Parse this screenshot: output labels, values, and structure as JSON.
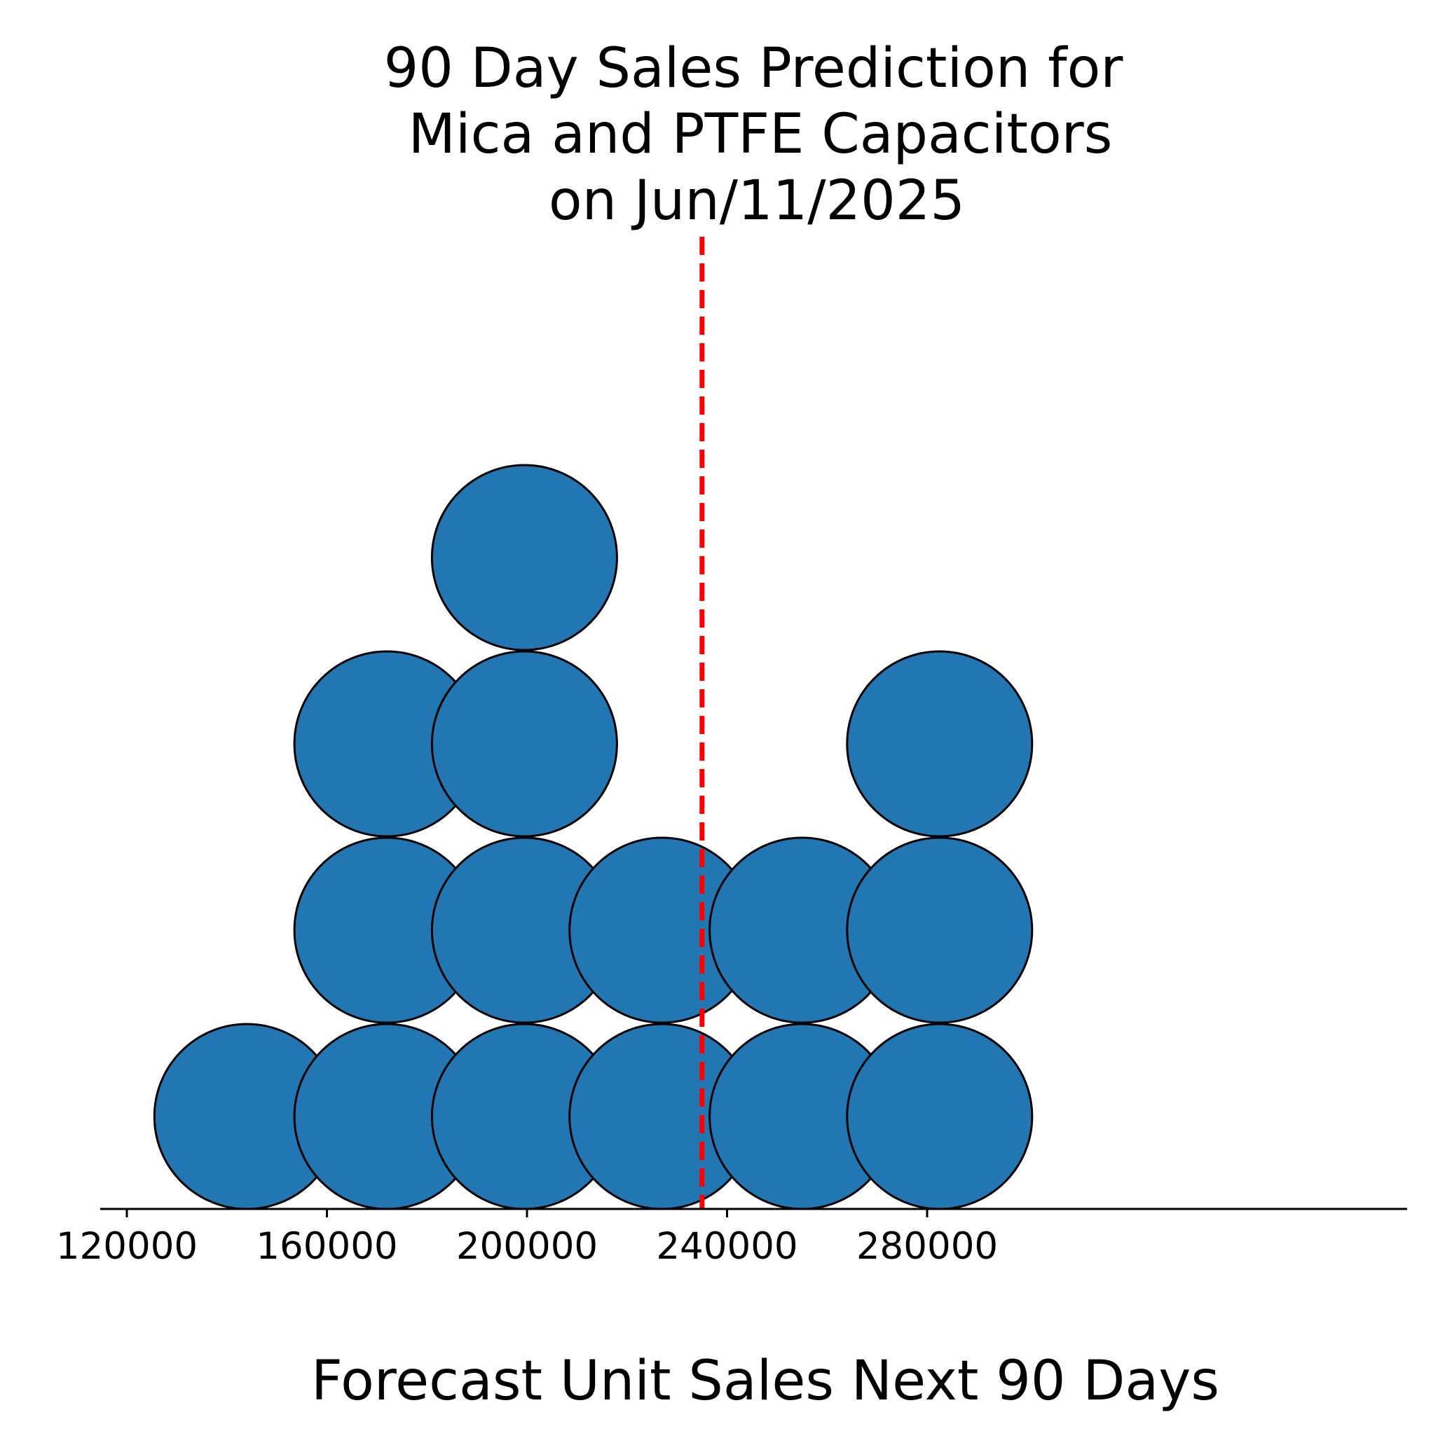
{
  "chart_data": {
    "type": "scatter",
    "style": "quantile-dotplot",
    "title_lines": [
      "90 Day Sales Prediction for",
      "Mica and PTFE Capacitors",
      "on Jun/11/2025"
    ],
    "xlabel": "Forecast Unit Sales Next 90 Days",
    "ylabel": "",
    "xlim": [
      116000,
      310000
    ],
    "x_ticks": [
      120000,
      160000,
      200000,
      240000,
      280000
    ],
    "x_tick_labels": [
      "120000",
      "160000",
      "200000",
      "240000",
      "280000"
    ],
    "grid": false,
    "columns": [
      {
        "x": 144000,
        "count": 1
      },
      {
        "x": 172000,
        "count": 3
      },
      {
        "x": 199500,
        "count": 4
      },
      {
        "x": 227000,
        "count": 2
      },
      {
        "x": 255000,
        "count": 2
      },
      {
        "x": 282500,
        "count": 3
      }
    ],
    "reference_line": {
      "x": 235000,
      "style": "dashed"
    },
    "colors": {
      "dot_fill": "#2277b2",
      "dot_edge": "#000000",
      "reference_line": "#ff0000",
      "axis": "#000000"
    }
  }
}
